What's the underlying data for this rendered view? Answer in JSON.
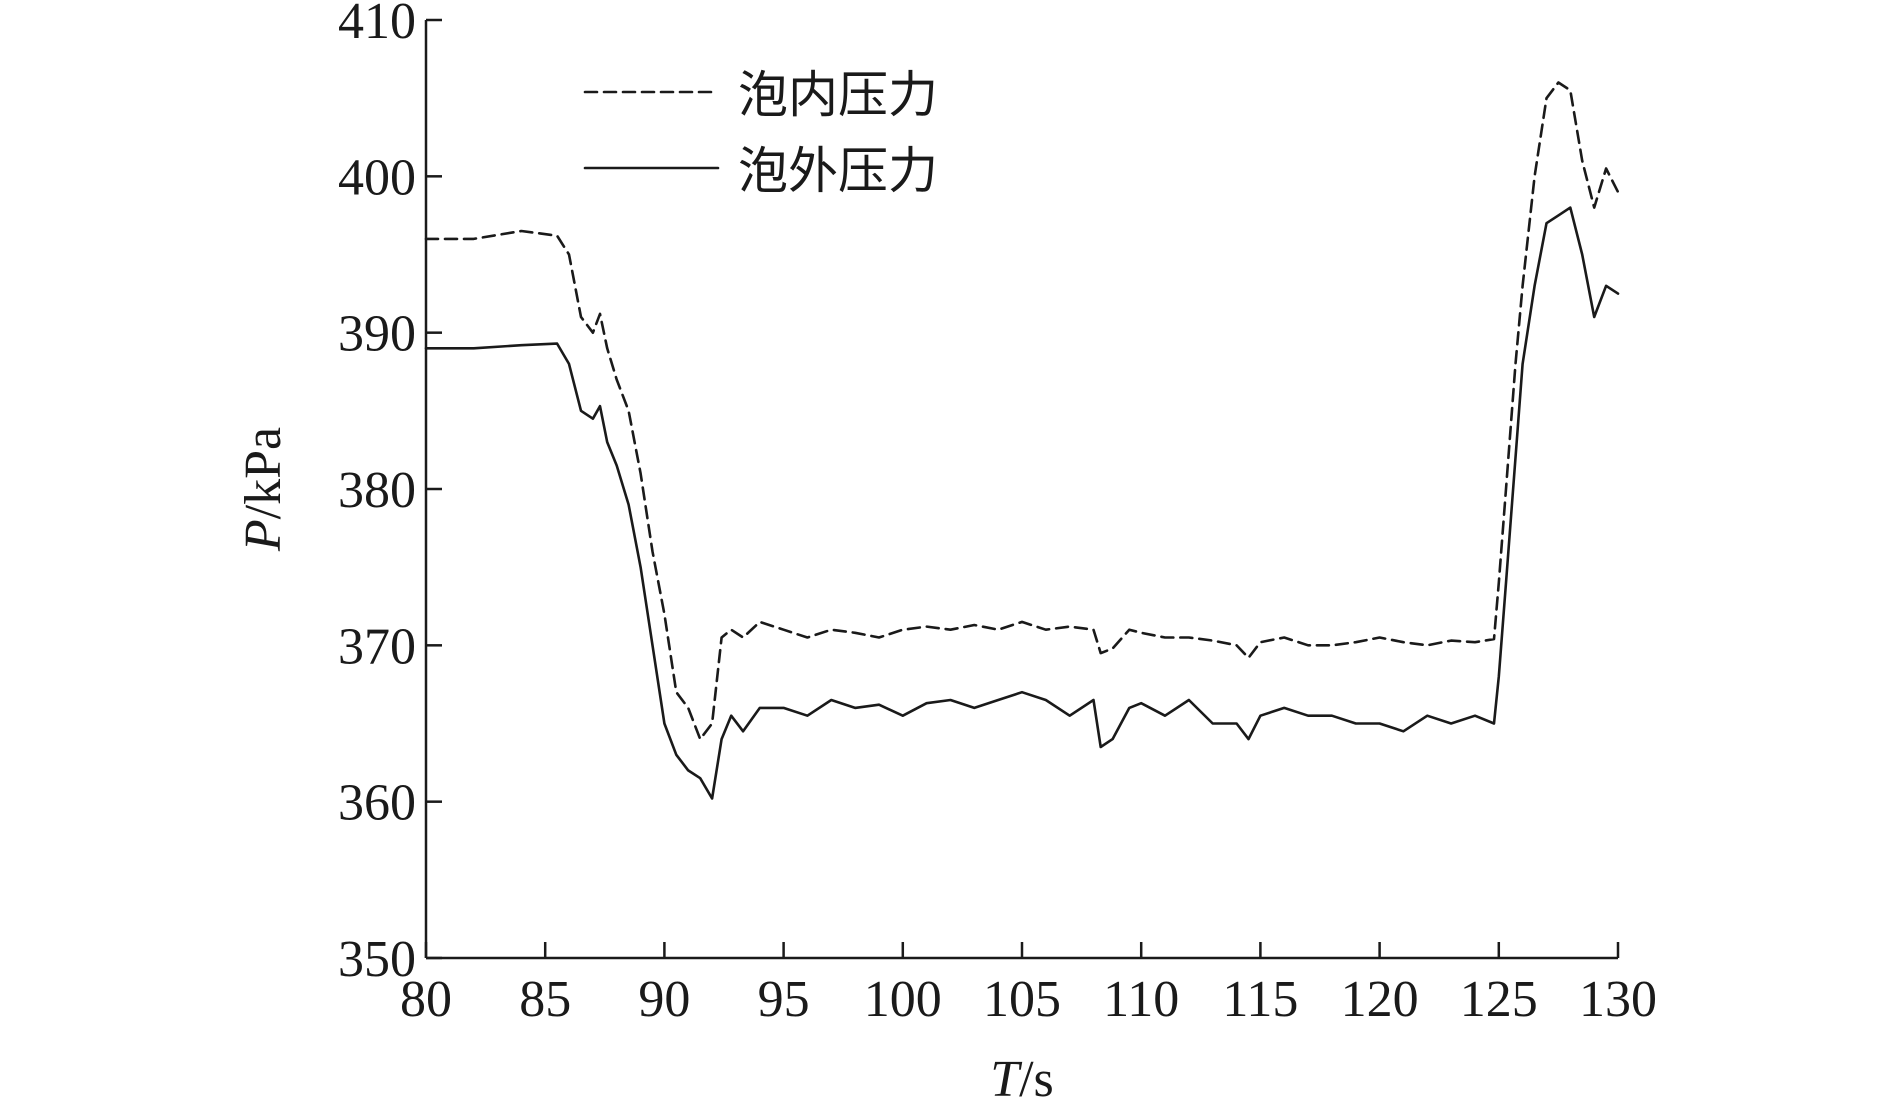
{
  "chart_data": {
    "type": "line",
    "xlabel": "T/s",
    "xlabel_var": "T",
    "xlabel_unit": "/s",
    "ylabel": "P/kPa",
    "ylabel_var": "P",
    "ylabel_unit": "/kPa",
    "xlim": [
      80,
      130
    ],
    "ylim": [
      350,
      410
    ],
    "xticks": [
      80,
      85,
      90,
      95,
      100,
      105,
      110,
      115,
      120,
      125,
      130
    ],
    "yticks": [
      350,
      360,
      370,
      380,
      390,
      400,
      410
    ],
    "grid": false,
    "legend_position": "top-left",
    "series": [
      {
        "name": "泡内压力",
        "style": "dashed",
        "color": "#1a1a1a",
        "x": [
          80,
          82,
          84,
          85.5,
          86,
          86.5,
          87,
          87.3,
          87.6,
          88,
          88.5,
          89,
          89.5,
          90,
          90.5,
          91,
          91.5,
          92,
          92.4,
          92.8,
          93.3,
          94,
          95,
          96,
          97,
          98,
          99,
          100,
          101,
          102,
          103,
          104,
          105,
          106,
          107,
          108,
          108.3,
          108.8,
          109.5,
          110,
          111,
          112,
          113,
          114,
          114.5,
          115,
          116,
          117,
          118,
          119,
          120,
          121,
          122,
          123,
          124,
          124.8,
          125,
          125.3,
          125.7,
          126,
          126.5,
          127,
          127.5,
          128,
          128.5,
          129,
          129.5,
          130
        ],
        "y": [
          396,
          396,
          396.5,
          396.2,
          395,
          391,
          390,
          391.2,
          389,
          387,
          385,
          381,
          376,
          372,
          367,
          366,
          364,
          365,
          370.5,
          371,
          370.5,
          371.5,
          371,
          370.5,
          371,
          370.8,
          370.5,
          371,
          371.2,
          371,
          371.3,
          371,
          371.5,
          371,
          371.2,
          371,
          369.5,
          369.8,
          371,
          370.8,
          370.5,
          370.5,
          370.3,
          370,
          369.2,
          370.2,
          370.5,
          370,
          370,
          370.2,
          370.5,
          370.2,
          370,
          370.3,
          370.2,
          370.4,
          374,
          380,
          388,
          393,
          400,
          405,
          406,
          405.5,
          401,
          398,
          400.5,
          399
        ]
      },
      {
        "name": "泡外压力",
        "style": "solid",
        "color": "#1a1a1a",
        "x": [
          80,
          82,
          84,
          85.5,
          86,
          86.5,
          87,
          87.3,
          87.6,
          88,
          88.5,
          89,
          89.5,
          90,
          90.5,
          91,
          91.5,
          92,
          92.4,
          92.8,
          93.3,
          94,
          95,
          96,
          97,
          98,
          99,
          100,
          101,
          102,
          103,
          104,
          105,
          106,
          107,
          108,
          108.3,
          108.8,
          109.5,
          110,
          111,
          112,
          113,
          114,
          114.5,
          115,
          116,
          117,
          118,
          119,
          120,
          121,
          122,
          123,
          124,
          124.8,
          125,
          125.3,
          125.7,
          126,
          126.5,
          127,
          127.5,
          128,
          128.5,
          129,
          129.5,
          130
        ],
        "y": [
          389,
          389,
          389.2,
          389.3,
          388,
          385,
          384.5,
          385.3,
          383,
          381.5,
          379,
          375,
          370,
          365,
          363,
          362,
          361.5,
          360.2,
          364,
          365.5,
          364.5,
          366,
          366,
          365.5,
          366.5,
          366,
          366.2,
          365.5,
          366.3,
          366.5,
          366,
          366.5,
          367,
          366.5,
          365.5,
          366.5,
          363.5,
          364,
          366,
          366.3,
          365.5,
          366.5,
          365,
          365,
          364,
          365.5,
          366,
          365.5,
          365.5,
          365,
          365,
          364.5,
          365.5,
          365,
          365.5,
          365,
          368,
          374,
          382,
          388,
          393,
          397,
          397.5,
          398,
          395,
          391,
          393,
          392.5
        ]
      }
    ]
  }
}
